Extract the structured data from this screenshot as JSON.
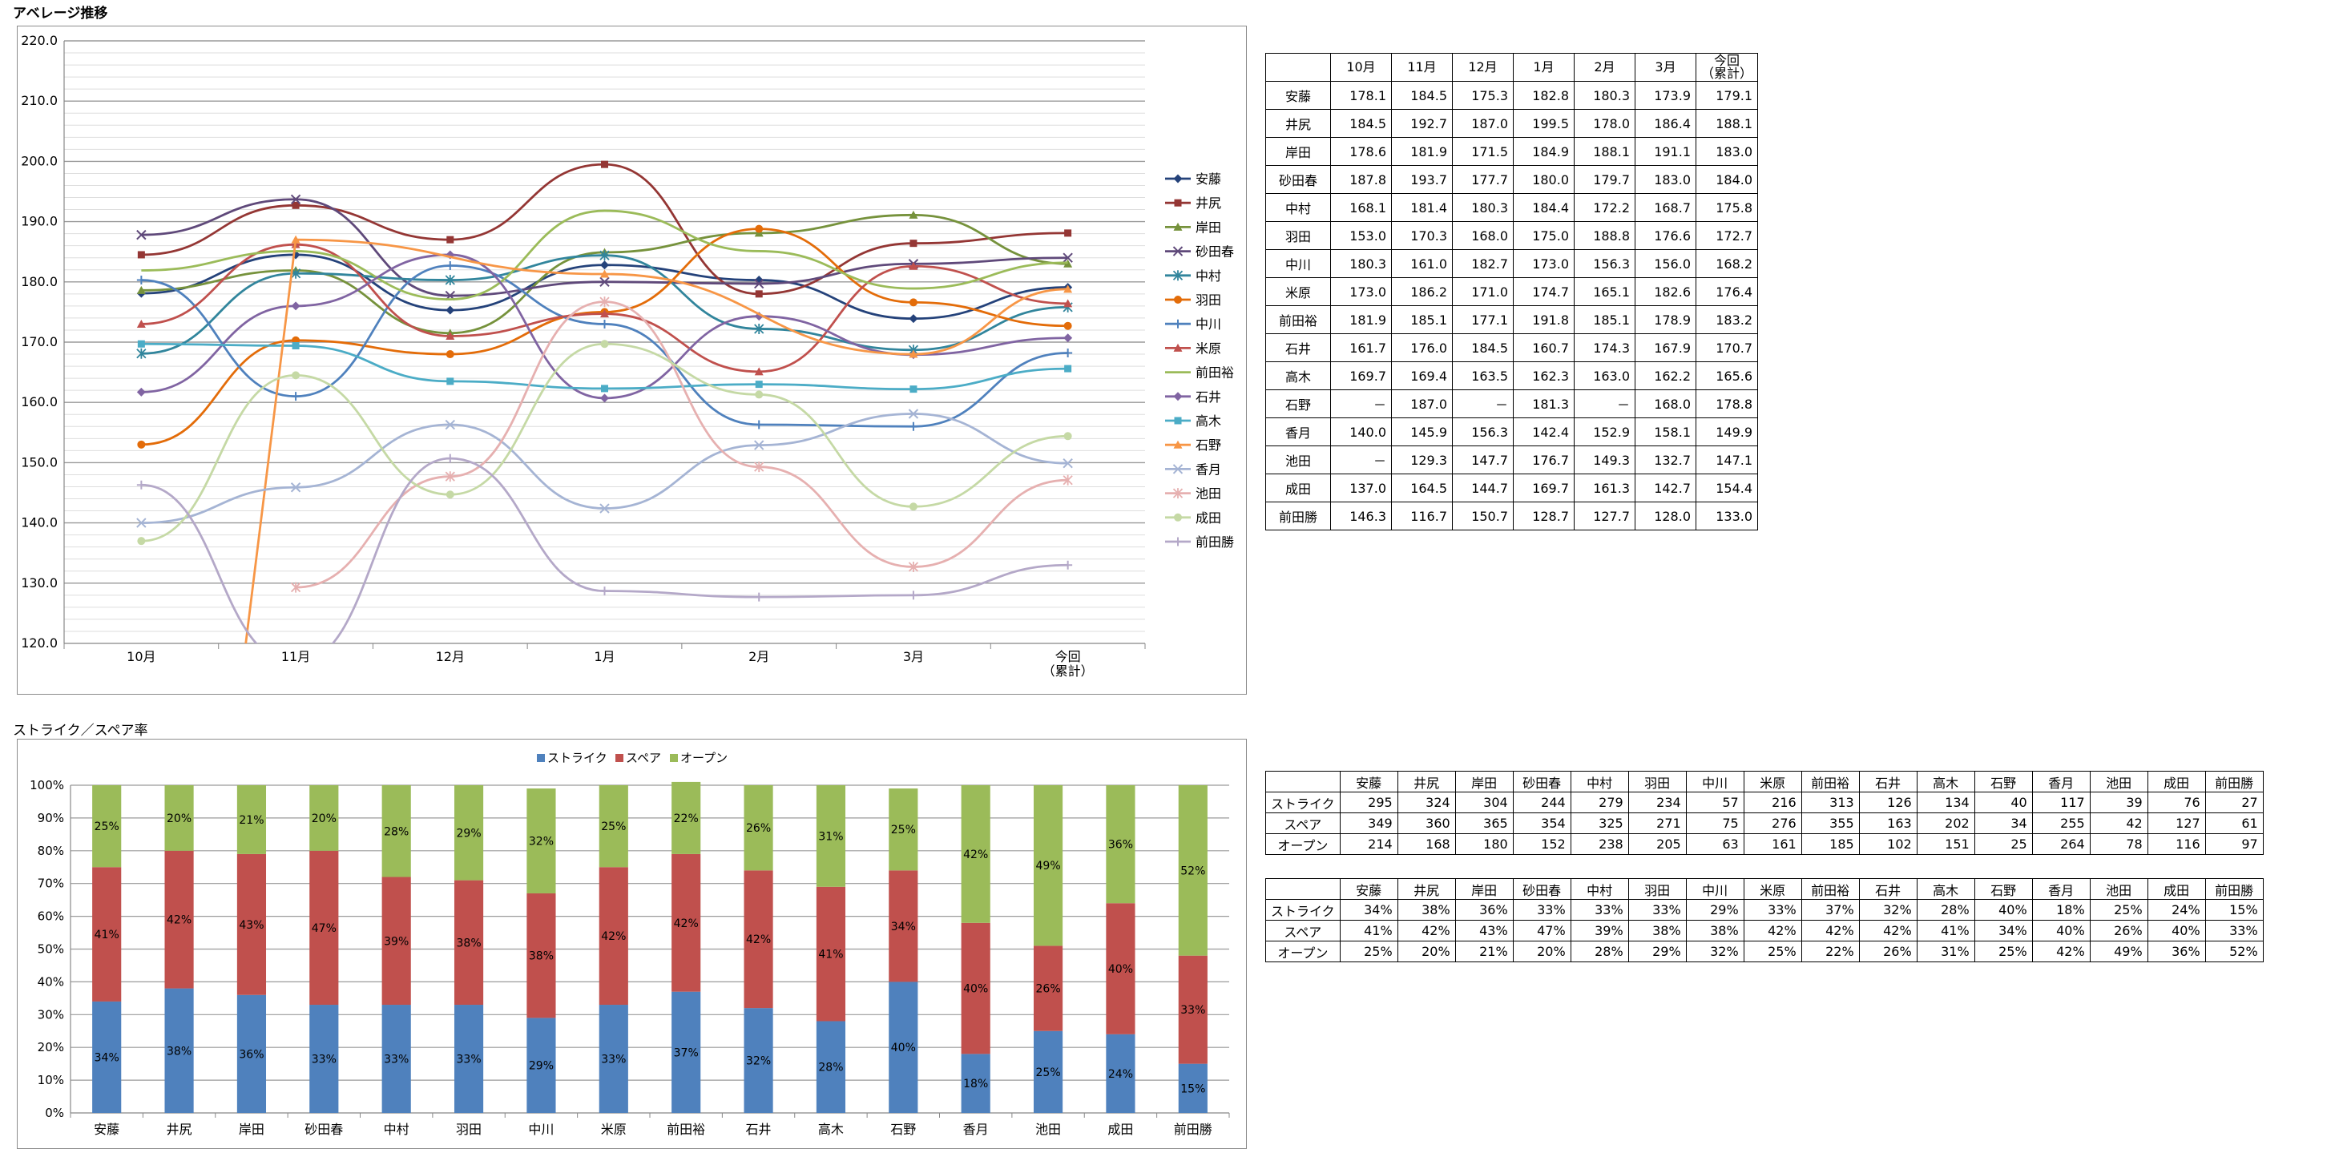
{
  "section_titles": {
    "average": "アベレージ推移",
    "rates": "ストライク／スペア率"
  },
  "months": [
    "10月",
    "11月",
    "12月",
    "1月",
    "2月",
    "3月",
    "今回\n（累計）"
  ],
  "bowlers": [
    "安藤",
    "井尻",
    "岸田",
    "砂田春",
    "中村",
    "羽田",
    "中川",
    "米原",
    "前田裕",
    "石井",
    "高木",
    "石野",
    "香月",
    "池田",
    "成田",
    "前田勝"
  ],
  "average_table": {
    "rows": [
      [
        "178.1",
        "184.5",
        "175.3",
        "182.8",
        "180.3",
        "173.9",
        "179.1"
      ],
      [
        "184.5",
        "192.7",
        "187.0",
        "199.5",
        "178.0",
        "186.4",
        "188.1"
      ],
      [
        "178.6",
        "181.9",
        "171.5",
        "184.9",
        "188.1",
        "191.1",
        "183.0"
      ],
      [
        "187.8",
        "193.7",
        "177.7",
        "180.0",
        "179.7",
        "183.0",
        "184.0"
      ],
      [
        "168.1",
        "181.4",
        "180.3",
        "184.4",
        "172.2",
        "168.7",
        "175.8"
      ],
      [
        "153.0",
        "170.3",
        "168.0",
        "175.0",
        "188.8",
        "176.6",
        "172.7"
      ],
      [
        "180.3",
        "161.0",
        "182.7",
        "173.0",
        "156.3",
        "156.0",
        "168.2"
      ],
      [
        "173.0",
        "186.2",
        "171.0",
        "174.7",
        "165.1",
        "182.6",
        "176.4"
      ],
      [
        "181.9",
        "185.1",
        "177.1",
        "191.8",
        "185.1",
        "178.9",
        "183.2"
      ],
      [
        "161.7",
        "176.0",
        "184.5",
        "160.7",
        "174.3",
        "167.9",
        "170.7"
      ],
      [
        "169.7",
        "169.4",
        "163.5",
        "162.3",
        "163.0",
        "162.2",
        "165.6"
      ],
      [
        "－",
        "187.0",
        "－",
        "181.3",
        "－",
        "168.0",
        "178.8"
      ],
      [
        "140.0",
        "145.9",
        "156.3",
        "142.4",
        "152.9",
        "158.1",
        "149.9"
      ],
      [
        "－",
        "129.3",
        "147.7",
        "176.7",
        "149.3",
        "132.7",
        "147.1"
      ],
      [
        "137.0",
        "164.5",
        "144.7",
        "169.7",
        "161.3",
        "142.7",
        "154.4"
      ],
      [
        "146.3",
        "116.7",
        "150.7",
        "128.7",
        "127.7",
        "128.0",
        "133.0"
      ]
    ]
  },
  "count_table": {
    "row_labels": [
      "ストライク",
      "スペア",
      "オープン"
    ],
    "rows": [
      [
        "295",
        "324",
        "304",
        "244",
        "279",
        "234",
        "57",
        "216",
        "313",
        "126",
        "134",
        "40",
        "117",
        "39",
        "76",
        "27"
      ],
      [
        "349",
        "360",
        "365",
        "354",
        "325",
        "271",
        "75",
        "276",
        "355",
        "163",
        "202",
        "34",
        "255",
        "42",
        "127",
        "61"
      ],
      [
        "214",
        "168",
        "180",
        "152",
        "238",
        "205",
        "63",
        "161",
        "185",
        "102",
        "151",
        "25",
        "264",
        "78",
        "116",
        "97"
      ]
    ]
  },
  "percent_table": {
    "row_labels": [
      "ストライク",
      "スペア",
      "オープン"
    ],
    "rows": [
      [
        "34%",
        "38%",
        "36%",
        "33%",
        "33%",
        "33%",
        "29%",
        "33%",
        "37%",
        "32%",
        "28%",
        "40%",
        "18%",
        "25%",
        "24%",
        "15%"
      ],
      [
        "41%",
        "42%",
        "43%",
        "47%",
        "39%",
        "38%",
        "38%",
        "42%",
        "42%",
        "42%",
        "41%",
        "34%",
        "40%",
        "26%",
        "40%",
        "33%"
      ],
      [
        "25%",
        "20%",
        "21%",
        "20%",
        "28%",
        "29%",
        "32%",
        "25%",
        "22%",
        "26%",
        "31%",
        "25%",
        "42%",
        "49%",
        "36%",
        "52%"
      ]
    ]
  },
  "chart_data": [
    {
      "type": "line",
      "categories": [
        "10月",
        "11月",
        "12月",
        "1月",
        "2月",
        "3月",
        "今回\n（累計）"
      ],
      "ylim": [
        120,
        220
      ],
      "ytick_step": 10,
      "grid": true,
      "legend_position": "right",
      "series": [
        {
          "name": "安藤",
          "color": "#24427a",
          "marker": "diamond",
          "values": [
            178.1,
            184.5,
            175.3,
            182.8,
            180.3,
            173.9,
            179.1
          ]
        },
        {
          "name": "井尻",
          "color": "#943634",
          "marker": "square",
          "values": [
            184.5,
            192.7,
            187.0,
            199.5,
            178.0,
            186.4,
            188.1
          ]
        },
        {
          "name": "岸田",
          "color": "#76923c",
          "marker": "triangle",
          "values": [
            178.6,
            181.9,
            171.5,
            184.9,
            188.1,
            191.1,
            183.0
          ]
        },
        {
          "name": "砂田春",
          "color": "#5f497a",
          "marker": "x",
          "values": [
            187.8,
            193.7,
            177.7,
            180.0,
            179.7,
            183.0,
            184.0
          ]
        },
        {
          "name": "中村",
          "color": "#31859c",
          "marker": "star",
          "values": [
            168.1,
            181.4,
            180.3,
            184.4,
            172.2,
            168.7,
            175.8
          ]
        },
        {
          "name": "羽田",
          "color": "#e36c09",
          "marker": "circle",
          "values": [
            153.0,
            170.3,
            168.0,
            175.0,
            188.8,
            176.6,
            172.7
          ]
        },
        {
          "name": "中川",
          "color": "#4f81bd",
          "marker": "plus",
          "values": [
            180.3,
            161.0,
            182.7,
            173.0,
            156.3,
            156.0,
            168.2
          ]
        },
        {
          "name": "米原",
          "color": "#c0504d",
          "marker": "triangle",
          "values": [
            173.0,
            186.2,
            171.0,
            174.7,
            165.1,
            182.6,
            176.4
          ]
        },
        {
          "name": "前田裕",
          "color": "#9bbb59",
          "marker": "none",
          "values": [
            181.9,
            185.1,
            177.1,
            191.8,
            185.1,
            178.9,
            183.2
          ]
        },
        {
          "name": "石井",
          "color": "#8064a2",
          "marker": "diamond",
          "values": [
            161.7,
            176.0,
            184.5,
            160.7,
            174.3,
            167.9,
            170.7
          ]
        },
        {
          "name": "高木",
          "color": "#4bacc6",
          "marker": "square",
          "values": [
            169.7,
            169.4,
            163.5,
            162.3,
            163.0,
            162.2,
            165.6
          ]
        },
        {
          "name": "石野",
          "color": "#f79646",
          "marker": "triangle",
          "values": [
            null,
            187.0,
            null,
            181.3,
            null,
            168.0,
            178.8
          ]
        },
        {
          "name": "香月",
          "color": "#a5b4d4",
          "marker": "x",
          "values": [
            140.0,
            145.9,
            156.3,
            142.4,
            152.9,
            158.1,
            149.9
          ]
        },
        {
          "name": "池田",
          "color": "#e6b0b0",
          "marker": "star",
          "values": [
            null,
            129.3,
            147.7,
            176.7,
            149.3,
            132.7,
            147.1
          ]
        },
        {
          "name": "成田",
          "color": "#c5d9a5",
          "marker": "circle",
          "values": [
            137.0,
            164.5,
            144.7,
            169.7,
            161.3,
            142.7,
            154.4
          ]
        },
        {
          "name": "前田勝",
          "color": "#b4a8c8",
          "marker": "plus",
          "values": [
            146.3,
            116.7,
            150.7,
            128.7,
            127.7,
            128.0,
            133.0
          ]
        }
      ]
    },
    {
      "type": "bar",
      "stacked": "percent",
      "categories": [
        "安藤",
        "井尻",
        "岸田",
        "砂田春",
        "中村",
        "羽田",
        "中川",
        "米原",
        "前田裕",
        "石井",
        "高木",
        "石野",
        "香月",
        "池田",
        "成田",
        "前田勝"
      ],
      "ylim": [
        0,
        100
      ],
      "ytick_labels": [
        "0%",
        "10%",
        "20%",
        "30%",
        "40%",
        "50%",
        "60%",
        "70%",
        "80%",
        "90%",
        "100%"
      ],
      "legend_position": "top",
      "series": [
        {
          "name": "ストライク",
          "color": "#4f81bd",
          "values": [
            34,
            38,
            36,
            33,
            33,
            33,
            29,
            33,
            37,
            32,
            28,
            40,
            18,
            25,
            24,
            15
          ],
          "labels": [
            "34%",
            "38%",
            "36%",
            "33%",
            "33%",
            "33%",
            "29%",
            "33%",
            "37%",
            "32%",
            "28%",
            "40%",
            "18%",
            "25%",
            "24%",
            "15%"
          ]
        },
        {
          "name": "スペア",
          "color": "#c0504d",
          "values": [
            41,
            42,
            43,
            47,
            39,
            38,
            38,
            42,
            42,
            42,
            41,
            34,
            40,
            26,
            40,
            33
          ],
          "labels": [
            "41%",
            "42%",
            "43%",
            "47%",
            "39%",
            "38%",
            "38%",
            "42%",
            "42%",
            "42%",
            "41%",
            "34%",
            "40%",
            "26%",
            "40%",
            "33%"
          ]
        },
        {
          "name": "オープン",
          "color": "#9bbb59",
          "values": [
            25,
            20,
            21,
            20,
            28,
            29,
            32,
            25,
            22,
            26,
            31,
            25,
            42,
            49,
            36,
            52
          ],
          "labels": [
            "25%",
            "20%",
            "21%",
            "20%",
            "28%",
            "29%",
            "32%",
            "25%",
            "22%",
            "26%",
            "31%",
            "25%",
            "42%",
            "49%",
            "36%",
            "52%"
          ]
        }
      ]
    }
  ]
}
